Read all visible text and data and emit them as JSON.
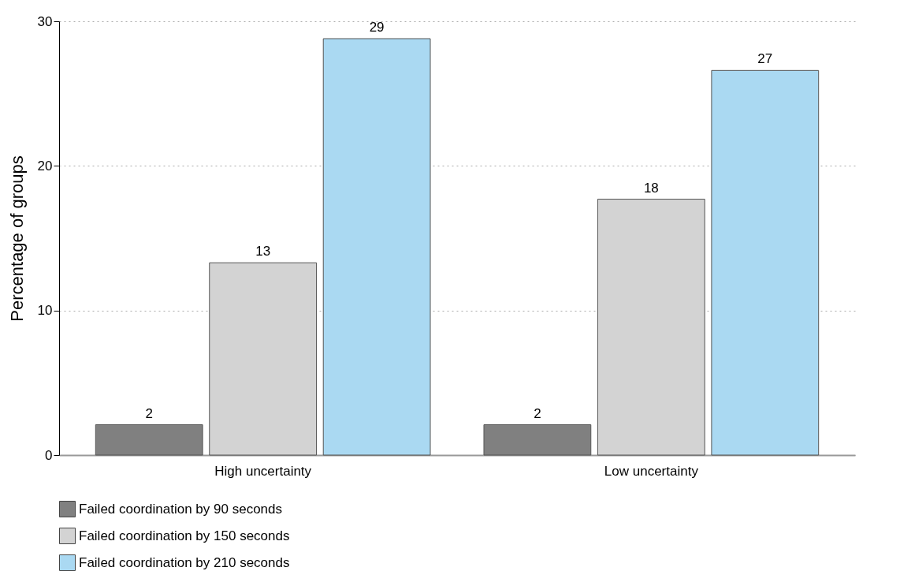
{
  "chart_data": {
    "type": "bar",
    "ylabel": "Percentage of groups",
    "categories": [
      "High uncertainty",
      "Low uncertainty"
    ],
    "series": [
      {
        "name": "Failed coordination by 90 seconds",
        "color": "#808080",
        "values": [
          2.1,
          2.1
        ],
        "value_labels": [
          "2",
          "2"
        ]
      },
      {
        "name": "Failed coordination by 150 seconds",
        "color": "#d3d3d3",
        "values": [
          13.3,
          17.7
        ],
        "value_labels": [
          "13",
          "18"
        ]
      },
      {
        "name": "Failed coordination by 210 seconds",
        "color": "#aad9f2",
        "values": [
          28.8,
          26.6
        ],
        "value_labels": [
          "29",
          "27"
        ]
      }
    ],
    "ylim": [
      0,
      30
    ],
    "yticks": [
      0,
      10,
      20,
      30
    ],
    "grid": "y",
    "legend": "bottom"
  }
}
